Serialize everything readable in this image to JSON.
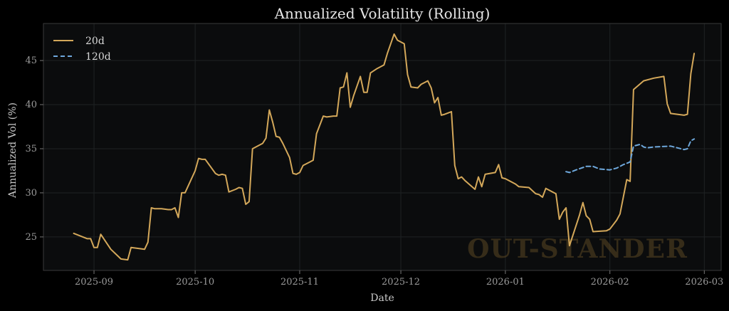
{
  "chart_data": {
    "type": "line",
    "title": "Annualized Volatility (Rolling)",
    "xlabel": "Date",
    "ylabel": "Annualized Vol (%)",
    "ylim": [
      21.2,
      49.2
    ],
    "xlim": [
      "2025-08-17",
      "2026-03-06"
    ],
    "grid": true,
    "legend_position": "top-left",
    "yticks": [
      25,
      30,
      35,
      40,
      45
    ],
    "xticks": [
      {
        "date": "2025-09-01",
        "label": "2025-09"
      },
      {
        "date": "2025-10-01",
        "label": "2025-10"
      },
      {
        "date": "2025-11-01",
        "label": "2025-11"
      },
      {
        "date": "2025-12-01",
        "label": "2025-12"
      },
      {
        "date": "2026-01-01",
        "label": "2026-01"
      },
      {
        "date": "2026-02-01",
        "label": "2026-02"
      },
      {
        "date": "2026-03-01",
        "label": "2026-03"
      }
    ],
    "watermark": "OUT-STANDER",
    "series": [
      {
        "name": "20d",
        "color": "#d4a85a",
        "style": "solid",
        "points": [
          [
            "2025-08-26",
            25.4
          ],
          [
            "2025-08-28",
            25.1
          ],
          [
            "2025-08-30",
            24.8
          ],
          [
            "2025-08-31",
            24.8
          ],
          [
            "2025-09-01",
            23.8
          ],
          [
            "2025-09-02",
            23.8
          ],
          [
            "2025-09-03",
            25.3
          ],
          [
            "2025-09-06",
            23.6
          ],
          [
            "2025-09-09",
            22.5
          ],
          [
            "2025-09-11",
            22.4
          ],
          [
            "2025-09-12",
            23.8
          ],
          [
            "2025-09-16",
            23.6
          ],
          [
            "2025-09-17",
            24.4
          ],
          [
            "2025-09-18",
            28.3
          ],
          [
            "2025-09-19",
            28.2
          ],
          [
            "2025-09-21",
            28.2
          ],
          [
            "2025-09-23",
            28.1
          ],
          [
            "2025-09-24",
            28.1
          ],
          [
            "2025-09-25",
            28.3
          ],
          [
            "2025-09-26",
            27.2
          ],
          [
            "2025-09-27",
            30.0
          ],
          [
            "2025-09-28",
            30.0
          ],
          [
            "2025-10-01",
            32.5
          ],
          [
            "2025-10-02",
            33.9
          ],
          [
            "2025-10-03",
            33.8
          ],
          [
            "2025-10-04",
            33.8
          ],
          [
            "2025-10-07",
            32.2
          ],
          [
            "2025-10-08",
            32.0
          ],
          [
            "2025-10-09",
            32.1
          ],
          [
            "2025-10-10",
            32.0
          ],
          [
            "2025-10-11",
            30.1
          ],
          [
            "2025-10-13",
            30.4
          ],
          [
            "2025-10-14",
            30.6
          ],
          [
            "2025-10-15",
            30.5
          ],
          [
            "2025-10-16",
            28.7
          ],
          [
            "2025-10-17",
            29.0
          ],
          [
            "2025-10-18",
            35.0
          ],
          [
            "2025-10-21",
            35.6
          ],
          [
            "2025-10-22",
            36.2
          ],
          [
            "2025-10-23",
            39.4
          ],
          [
            "2025-10-24",
            38.0
          ],
          [
            "2025-10-25",
            36.4
          ],
          [
            "2025-10-26",
            36.3
          ],
          [
            "2025-10-27",
            35.6
          ],
          [
            "2025-10-29",
            34.0
          ],
          [
            "2025-10-30",
            32.2
          ],
          [
            "2025-10-31",
            32.1
          ],
          [
            "2025-11-01",
            32.3
          ],
          [
            "2025-11-02",
            33.1
          ],
          [
            "2025-11-04",
            33.5
          ],
          [
            "2025-11-05",
            33.7
          ],
          [
            "2025-11-06",
            36.7
          ],
          [
            "2025-11-08",
            38.7
          ],
          [
            "2025-11-09",
            38.6
          ],
          [
            "2025-11-11",
            38.7
          ],
          [
            "2025-11-12",
            38.7
          ],
          [
            "2025-11-13",
            41.9
          ],
          [
            "2025-11-14",
            42.0
          ],
          [
            "2025-11-15",
            43.6
          ],
          [
            "2025-11-16",
            39.7
          ],
          [
            "2025-11-17",
            41.0
          ],
          [
            "2025-11-19",
            43.2
          ],
          [
            "2025-11-20",
            41.4
          ],
          [
            "2025-11-21",
            41.4
          ],
          [
            "2025-11-22",
            43.6
          ],
          [
            "2025-11-24",
            44.1
          ],
          [
            "2025-11-26",
            44.5
          ],
          [
            "2025-11-27",
            45.8
          ],
          [
            "2025-11-29",
            48.0
          ],
          [
            "2025-11-30",
            47.3
          ],
          [
            "2025-12-02",
            46.9
          ],
          [
            "2025-12-03",
            43.4
          ],
          [
            "2025-12-04",
            42.0
          ],
          [
            "2025-12-06",
            41.9
          ],
          [
            "2025-12-07",
            42.3
          ],
          [
            "2025-12-09",
            42.7
          ],
          [
            "2025-12-10",
            41.9
          ],
          [
            "2025-12-11",
            40.2
          ],
          [
            "2025-12-12",
            40.8
          ],
          [
            "2025-12-13",
            38.8
          ],
          [
            "2025-12-14",
            38.9
          ],
          [
            "2025-12-16",
            39.2
          ],
          [
            "2025-12-17",
            33.1
          ],
          [
            "2025-12-18",
            31.6
          ],
          [
            "2025-12-19",
            31.8
          ],
          [
            "2025-12-20",
            31.4
          ],
          [
            "2025-12-23",
            30.4
          ],
          [
            "2025-12-24",
            31.8
          ],
          [
            "2025-12-25",
            30.7
          ],
          [
            "2025-12-26",
            32.1
          ],
          [
            "2025-12-29",
            32.3
          ],
          [
            "2025-12-30",
            33.2
          ],
          [
            "2025-12-31",
            31.7
          ],
          [
            "2026-01-01",
            31.6
          ],
          [
            "2026-01-04",
            31.0
          ],
          [
            "2026-01-05",
            30.7
          ],
          [
            "2026-01-08",
            30.6
          ],
          [
            "2026-01-10",
            29.9
          ],
          [
            "2026-01-11",
            29.8
          ],
          [
            "2026-01-12",
            29.5
          ],
          [
            "2026-01-13",
            30.5
          ],
          [
            "2026-01-14",
            30.3
          ],
          [
            "2026-01-16",
            29.9
          ],
          [
            "2026-01-17",
            27.0
          ],
          [
            "2026-01-18",
            27.8
          ],
          [
            "2026-01-19",
            28.3
          ],
          [
            "2026-01-20",
            24.0
          ],
          [
            "2026-01-23",
            27.5
          ],
          [
            "2026-01-24",
            28.9
          ],
          [
            "2026-01-25",
            27.4
          ],
          [
            "2026-01-26",
            27.0
          ],
          [
            "2026-01-27",
            25.6
          ],
          [
            "2026-01-31",
            25.7
          ],
          [
            "2026-02-01",
            25.9
          ],
          [
            "2026-02-03",
            26.9
          ],
          [
            "2026-02-04",
            27.6
          ],
          [
            "2026-02-06",
            31.5
          ],
          [
            "2026-02-07",
            31.3
          ],
          [
            "2026-02-08",
            41.7
          ],
          [
            "2026-02-11",
            42.7
          ],
          [
            "2026-02-14",
            43.0
          ],
          [
            "2026-02-17",
            43.2
          ],
          [
            "2026-02-18",
            40.1
          ],
          [
            "2026-02-19",
            39.0
          ],
          [
            "2026-02-23",
            38.8
          ],
          [
            "2026-02-24",
            38.9
          ],
          [
            "2026-02-25",
            43.5
          ],
          [
            "2026-02-26",
            45.8
          ]
        ]
      },
      {
        "name": "120d",
        "color": "#6ea8dc",
        "style": "dashed",
        "points": [
          [
            "2026-01-19",
            32.4
          ],
          [
            "2026-01-20",
            32.3
          ],
          [
            "2026-01-22",
            32.6
          ],
          [
            "2026-01-25",
            33.0
          ],
          [
            "2026-01-27",
            33.0
          ],
          [
            "2026-01-29",
            32.7
          ],
          [
            "2026-02-01",
            32.6
          ],
          [
            "2026-02-03",
            32.8
          ],
          [
            "2026-02-05",
            33.2
          ],
          [
            "2026-02-07",
            33.5
          ],
          [
            "2026-02-08",
            35.3
          ],
          [
            "2026-02-10",
            35.5
          ],
          [
            "2026-02-11",
            35.2
          ],
          [
            "2026-02-12",
            35.1
          ],
          [
            "2026-02-14",
            35.2
          ],
          [
            "2026-02-19",
            35.3
          ],
          [
            "2026-02-21",
            35.1
          ],
          [
            "2026-02-23",
            34.9
          ],
          [
            "2026-02-24",
            35.0
          ],
          [
            "2026-02-25",
            35.9
          ],
          [
            "2026-02-26",
            36.1
          ]
        ]
      }
    ]
  }
}
